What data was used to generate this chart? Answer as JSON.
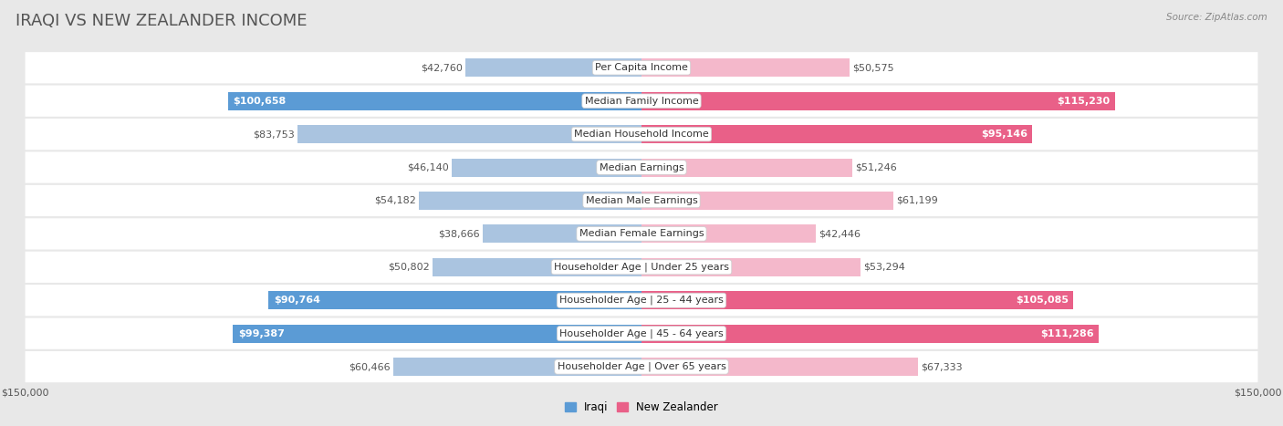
{
  "title": "IRAQI VS NEW ZEALANDER INCOME",
  "source_text": "Source: ZipAtlas.com",
  "categories": [
    "Per Capita Income",
    "Median Family Income",
    "Median Household Income",
    "Median Earnings",
    "Median Male Earnings",
    "Median Female Earnings",
    "Householder Age | Under 25 years",
    "Householder Age | 25 - 44 years",
    "Householder Age | 45 - 64 years",
    "Householder Age | Over 65 years"
  ],
  "iraqi_values": [
    42760,
    100658,
    83753,
    46140,
    54182,
    38666,
    50802,
    90764,
    99387,
    60466
  ],
  "nz_values": [
    50575,
    115230,
    95146,
    51246,
    61199,
    42446,
    53294,
    105085,
    111286,
    67333
  ],
  "iraqi_labels": [
    "$42,760",
    "$100,658",
    "$83,753",
    "$46,140",
    "$54,182",
    "$38,666",
    "$50,802",
    "$90,764",
    "$99,387",
    "$60,466"
  ],
  "nz_labels": [
    "$50,575",
    "$115,230",
    "$95,146",
    "$51,246",
    "$61,199",
    "$42,446",
    "$53,294",
    "$105,085",
    "$111,286",
    "$67,333"
  ],
  "iraqi_color_light": "#aac4e0",
  "iraqi_color_strong": "#5b9bd5",
  "nz_color_light": "#f4b8cb",
  "nz_color_strong": "#e96088",
  "max_val": 150000,
  "bg_color": "#e8e8e8",
  "row_bg": "#f7f7f7",
  "legend_label_iraqi": "Iraqi",
  "legend_label_nz": "New Zealander",
  "title_fontsize": 13,
  "label_fontsize": 8,
  "category_fontsize": 8,
  "axis_label_fontsize": 8,
  "strong_threshold": 0.58
}
